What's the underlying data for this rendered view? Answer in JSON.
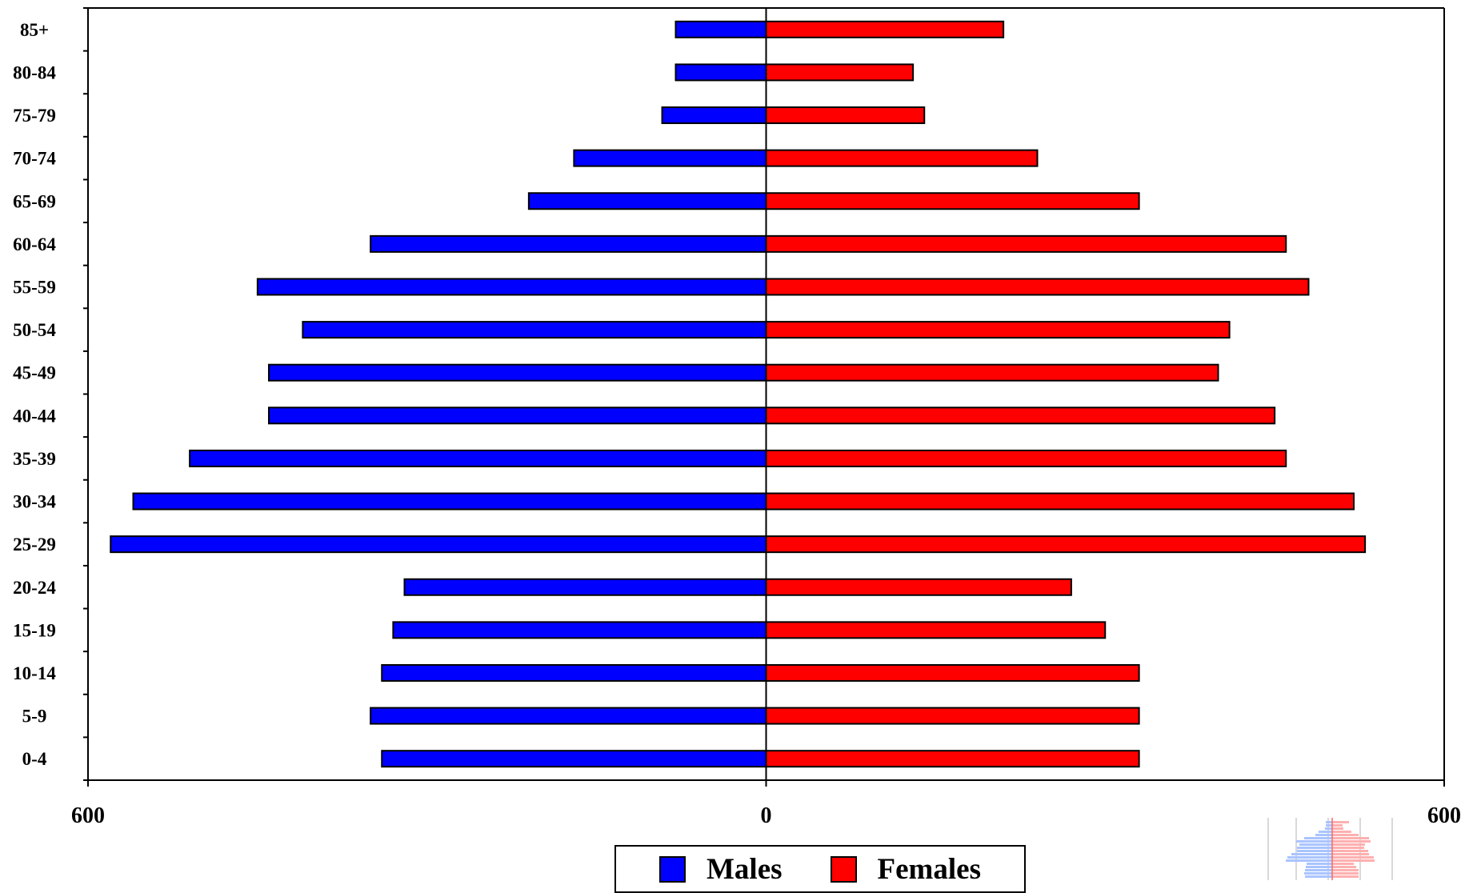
{
  "chart_data": {
    "type": "bar",
    "orientation": "horizontal",
    "categories": [
      "0-4",
      "5-9",
      "10-14",
      "15-19",
      "20-24",
      "25-29",
      "30-34",
      "35-39",
      "40-44",
      "45-49",
      "50-54",
      "55-59",
      "60-64",
      "65-69",
      "70-74",
      "75-79",
      "80-84",
      "85+"
    ],
    "series": [
      {
        "name": "Males",
        "color": "#0000ff",
        "values": [
          340,
          350,
          340,
          330,
          320,
          580,
          560,
          510,
          440,
          440,
          410,
          450,
          350,
          210,
          170,
          92,
          80,
          80
        ]
      },
      {
        "name": "Females",
        "color": "#ff0000",
        "values": [
          330,
          330,
          330,
          300,
          270,
          530,
          520,
          460,
          450,
          400,
          410,
          480,
          460,
          330,
          240,
          140,
          130,
          210
        ]
      }
    ],
    "x_ticks": [
      "600",
      "0",
      "600"
    ],
    "xlim": [
      -600,
      600
    ],
    "title": "",
    "xlabel": "",
    "ylabel": "",
    "legend": {
      "position": "bottom-center",
      "items": [
        "Males",
        "Females"
      ]
    },
    "grid": false
  }
}
